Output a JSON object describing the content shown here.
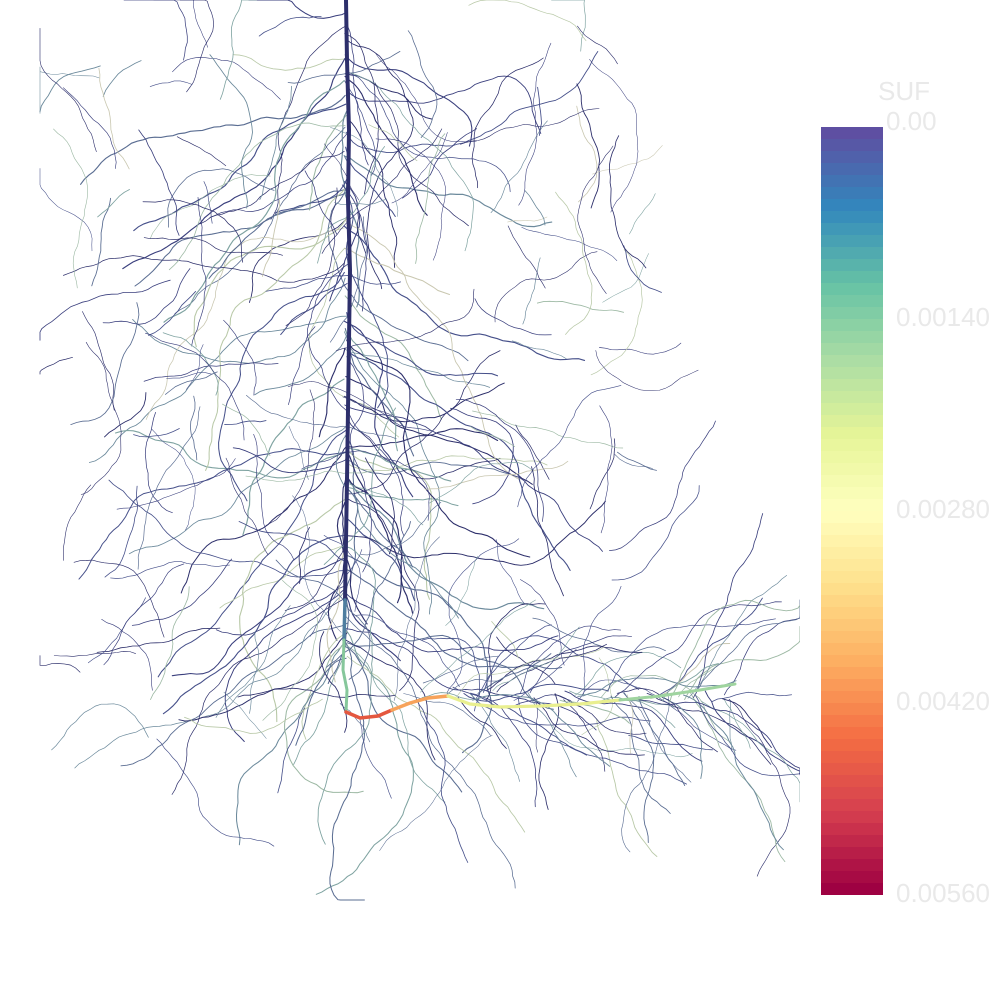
{
  "colorbar": {
    "title": "SUF",
    "ticks": [
      "0.00",
      "0.00140",
      "0.00280",
      "0.00420",
      "0.00560"
    ],
    "colors": [
      "#5e4fa2",
      "#3288bd",
      "#66c2a5",
      "#abdda4",
      "#e6f598",
      "#ffffbf",
      "#fee08b",
      "#fdae61",
      "#f46d43",
      "#d53e4f",
      "#9e0142"
    ]
  },
  "colors": {
    "background": "#ffffff",
    "root_dark": "#2d2f6b",
    "label": "#e9e9e9"
  }
}
